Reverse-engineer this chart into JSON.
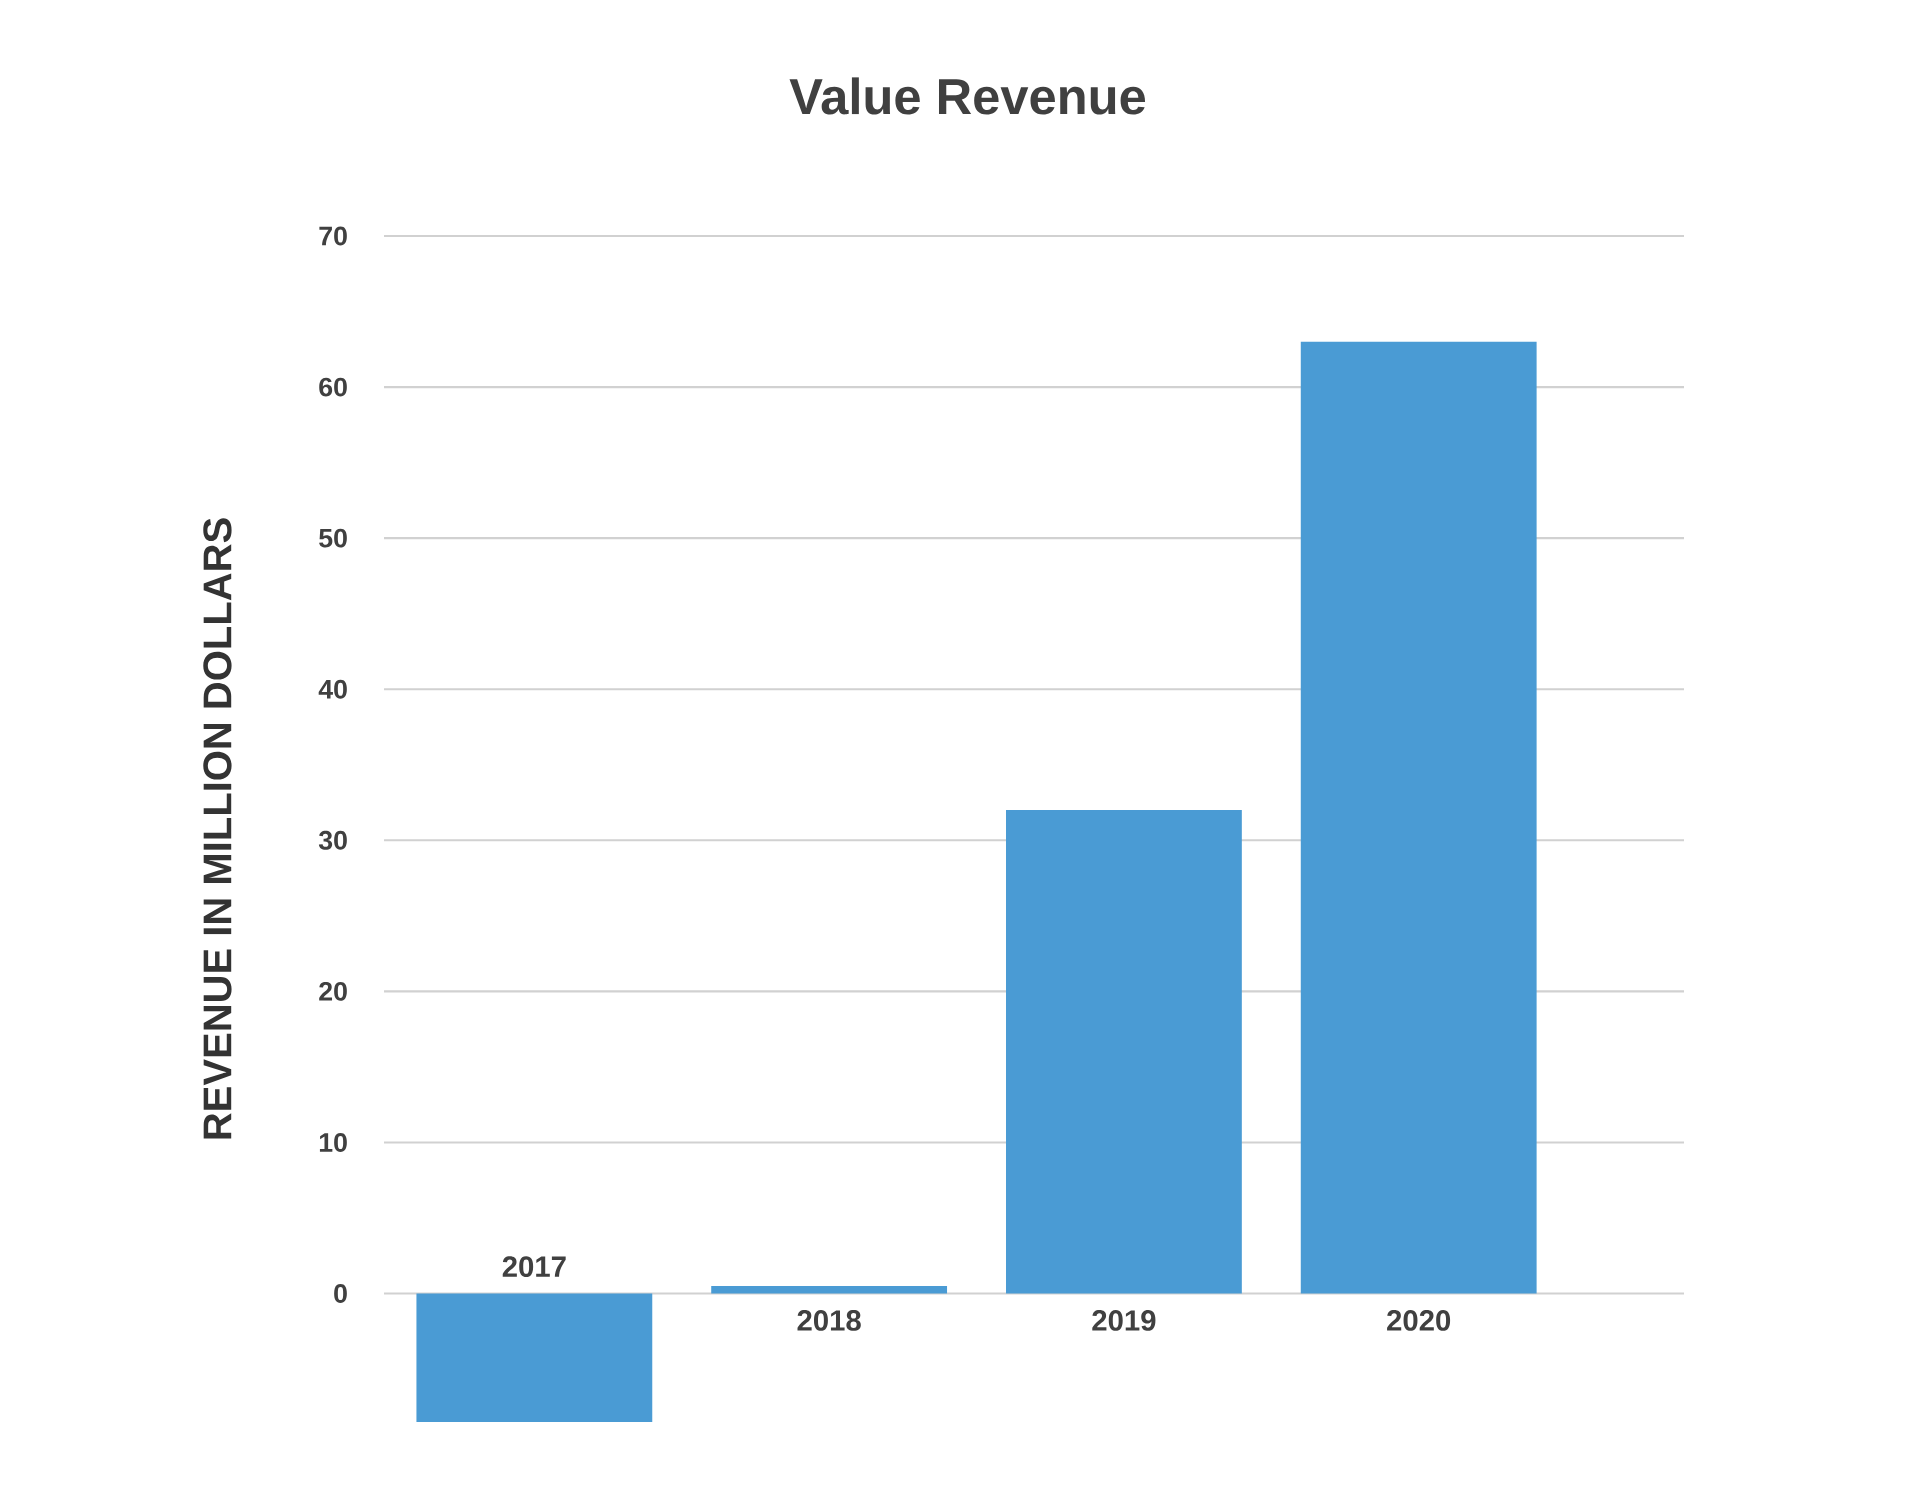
{
  "chart_data": {
    "type": "bar",
    "title": "Value Revenue",
    "ylabel": "REVENUE IN MILLION DOLLARS",
    "categories": [
      "2017",
      "2018",
      "2019",
      "2020"
    ],
    "values": [
      -8.5,
      0.5,
      32,
      63
    ],
    "color": "#4a9bd4",
    "ylim": [
      -8.5,
      70
    ],
    "yticks": [
      0,
      10,
      20,
      30,
      40,
      50,
      60,
      70
    ],
    "grid": "y"
  }
}
